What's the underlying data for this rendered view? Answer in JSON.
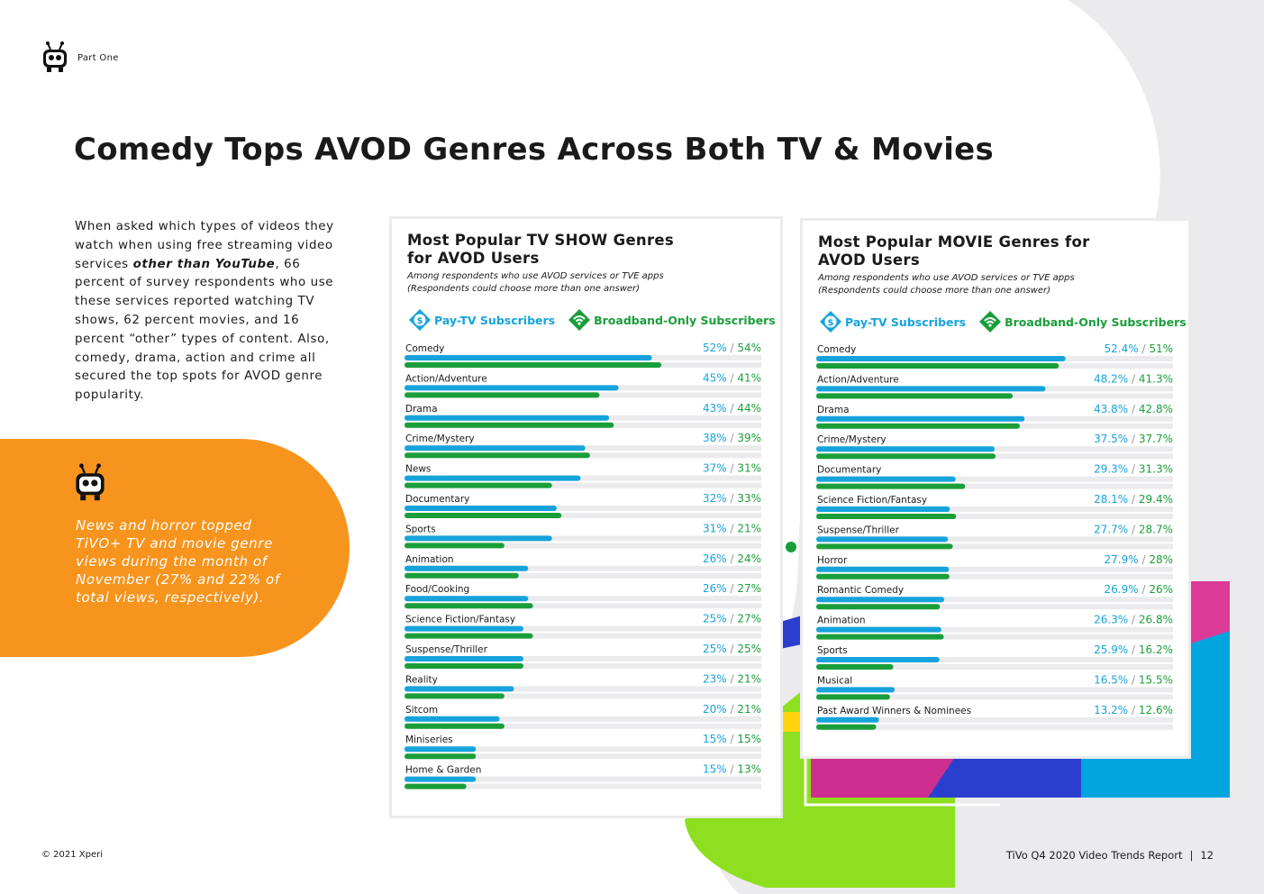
{
  "header": {
    "section": "Part One"
  },
  "title": "Comedy Tops AVOD Genres Across Both TV & Movies",
  "intro": {
    "before": "When asked which types of videos they watch when using free streaming video services ",
    "emphasis": "other than YouTube",
    "after": ", 66 percent of survey respondents who use these services reported watching TV shows, 62 percent movies, and 16 percent “other” types of content.  Also, comedy, drama, action and crime all secured the top spots for AVOD genre popularity."
  },
  "callout": {
    "text": "News and horror topped TiVO+ TV and movie genre views during the month of November (27% and 22% of total views, respectively)."
  },
  "colors": {
    "pay_tv": "#16a3dc",
    "broadband": "#1a9e3a",
    "track": "#ebebed",
    "orange": "#f7941d"
  },
  "legend": {
    "pay_tv": "Pay-TV Subscribers",
    "broadband": "Broadband-Only Subscribers"
  },
  "panels": [
    {
      "title_line1": "Most Popular TV SHOW Genres",
      "title_line2": "for AVOD Users",
      "subtitle_line1": "Among respondents who use AVOD services or TVE apps",
      "subtitle_line2": "(Respondents could choose more than one answer)"
    },
    {
      "title_line1": "Most Popular MOVIE Genres for",
      "title_line2": "AVOD Users",
      "subtitle_line1": "Among respondents who use AVOD services or TVE apps",
      "subtitle_line2": "(Respondents could choose more than one answer)"
    }
  ],
  "chart_data": [
    {
      "type": "bar",
      "orientation": "horizontal",
      "title": "Most Popular TV SHOW Genres for AVOD Users",
      "x_range": [
        0,
        75
      ],
      "categories": [
        "Comedy",
        "Action/Adventure",
        "Drama",
        "Crime/Mystery",
        "News",
        "Documentary",
        "Sports",
        "Animation",
        "Food/Cooking",
        "Science Fiction/Fantasy",
        "Suspense/Thriller",
        "Reality",
        "Sitcom",
        "Miniseries",
        "Home & Garden"
      ],
      "labels": [
        [
          "52%",
          "54%"
        ],
        [
          "45%",
          "41%"
        ],
        [
          "43%",
          "44%"
        ],
        [
          "38%",
          "39%"
        ],
        [
          "37%",
          "31%"
        ],
        [
          "32%",
          "33%"
        ],
        [
          "31%",
          "21%"
        ],
        [
          "26%",
          "24%"
        ],
        [
          "26%",
          "27%"
        ],
        [
          "25%",
          "27%"
        ],
        [
          "25%",
          "25%"
        ],
        [
          "23%",
          "21%"
        ],
        [
          "20%",
          "21%"
        ],
        [
          "15%",
          "15%"
        ],
        [
          "15%",
          "13%"
        ]
      ],
      "series": [
        {
          "name": "Pay-TV Subscribers",
          "values": [
            52,
            45,
            43,
            38,
            37,
            32,
            31,
            26,
            26,
            25,
            25,
            23,
            20,
            15,
            15
          ]
        },
        {
          "name": "Broadband-Only Subscribers",
          "values": [
            54,
            41,
            44,
            39,
            31,
            33,
            21,
            24,
            27,
            27,
            25,
            21,
            21,
            15,
            13
          ]
        }
      ]
    },
    {
      "type": "bar",
      "orientation": "horizontal",
      "title": "Most Popular MOVIE Genres for AVOD Users",
      "x_range": [
        0,
        75
      ],
      "categories": [
        "Comedy",
        "Action/Adventure",
        "Drama",
        "Crime/Mystery",
        "Documentary",
        "Science Fiction/Fantasy",
        "Suspense/Thriller",
        "Horror",
        "Romantic Comedy",
        "Animation",
        "Sports",
        "Musical",
        "Past Award Winners & Nominees"
      ],
      "labels": [
        [
          "52.4%",
          "51%"
        ],
        [
          "48.2%",
          "41.3%"
        ],
        [
          "43.8%",
          "42.8%"
        ],
        [
          "37.5%",
          "37.7%"
        ],
        [
          "29.3%",
          "31.3%"
        ],
        [
          "28.1%",
          "29.4%"
        ],
        [
          "27.7%",
          "28.7%"
        ],
        [
          "27.9%",
          "28%"
        ],
        [
          "26.9%",
          "26%"
        ],
        [
          "26.3%",
          "26.8%"
        ],
        [
          "25.9%",
          "16.2%"
        ],
        [
          "16.5%",
          "15.5%"
        ],
        [
          "13.2%",
          "12.6%"
        ]
      ],
      "series": [
        {
          "name": "Pay-TV Subscribers",
          "values": [
            52.4,
            48.2,
            43.8,
            37.5,
            29.3,
            28.1,
            27.7,
            27.9,
            26.9,
            26.3,
            25.9,
            16.5,
            13.2
          ]
        },
        {
          "name": "Broadband-Only Subscribers",
          "values": [
            51,
            41.3,
            42.8,
            37.7,
            31.3,
            29.4,
            28.7,
            28,
            26,
            26.8,
            16.2,
            15.5,
            12.6
          ]
        }
      ]
    }
  ],
  "footer": {
    "copyright": "© 2021 Xperi",
    "report": "TiVo Q4 2020 Video Trends Report",
    "divider": "|",
    "page": "12"
  }
}
